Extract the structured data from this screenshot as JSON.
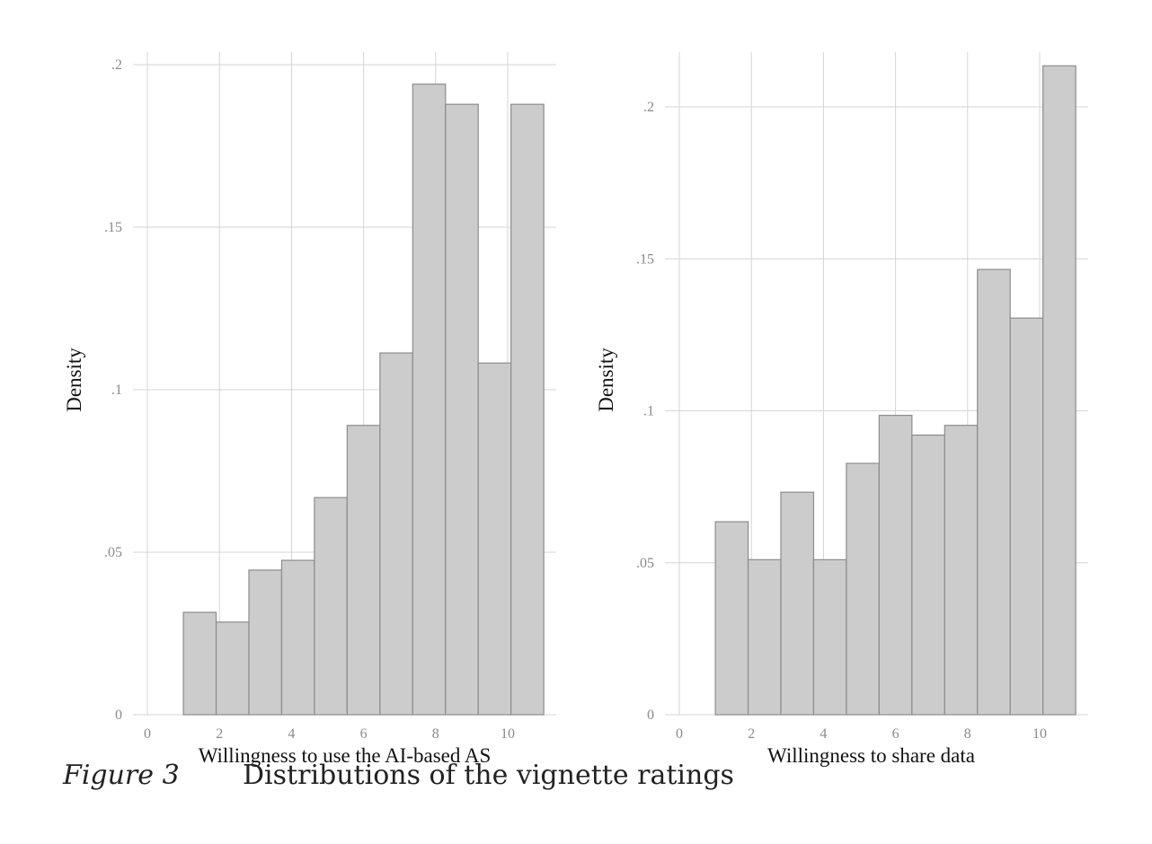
{
  "figure": {
    "label": "Figure 3",
    "title": "Distributions of the vignette ratings"
  },
  "colors": {
    "bar_fill": "#cccccc",
    "bar_stroke": "#8c8c8c",
    "grid": "#d4d4d4",
    "tick_text": "#8a8a8a",
    "axis_text": "#111111"
  },
  "chart_data": [
    {
      "type": "bar",
      "title": "",
      "xlabel": "Willingness to use the AI-based AS",
      "ylabel": "Density",
      "xlim": [
        -0.4,
        11.4
      ],
      "ylim": [
        0,
        0.2
      ],
      "x_ticks": [
        0,
        2,
        4,
        6,
        8,
        10
      ],
      "x_tick_labels": [
        "0",
        "2",
        "4",
        "6",
        "8",
        "10"
      ],
      "y_ticks": [
        0,
        0.05,
        0.1,
        0.15,
        0.2
      ],
      "y_tick_labels": [
        "0",
        ".05",
        ".1",
        ".15",
        ".2"
      ],
      "grid": true,
      "bin_edges": [
        1,
        1.909,
        2.818,
        3.727,
        4.636,
        5.545,
        6.455,
        7.364,
        8.273,
        9.182,
        10.091,
        11
      ],
      "values": [
        0.0315,
        0.0285,
        0.0445,
        0.0475,
        0.0668,
        0.089,
        0.1113,
        0.194,
        0.1878,
        0.1082,
        0.1878
      ]
    },
    {
      "type": "bar",
      "title": "",
      "xlabel": "Willingness to share data",
      "ylabel": "Density",
      "xlim": [
        -0.4,
        11.4
      ],
      "ylim": [
        0,
        0.2
      ],
      "x_ticks": [
        0,
        2,
        4,
        6,
        8,
        10
      ],
      "x_tick_labels": [
        "0",
        "2",
        "4",
        "6",
        "8",
        "10"
      ],
      "y_ticks": [
        0,
        0.05,
        0.1,
        0.15,
        0.2
      ],
      "y_tick_labels": [
        "0",
        ".05",
        ".1",
        ".15",
        ".2"
      ],
      "grid": true,
      "bin_edges": [
        1,
        1.909,
        2.818,
        3.727,
        4.636,
        5.545,
        6.455,
        7.364,
        8.273,
        9.182,
        10.091,
        11
      ],
      "values": [
        0.0635,
        0.051,
        0.0732,
        0.051,
        0.0827,
        0.0985,
        0.092,
        0.0952,
        0.1465,
        0.1305,
        0.2135
      ]
    }
  ]
}
